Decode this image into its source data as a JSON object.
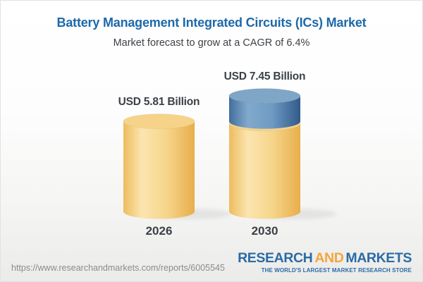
{
  "header": {
    "title": "Battery Management Integrated Circuits (ICs) Market",
    "subtitle": "Market forecast to grow at a CAGR of 6.4%"
  },
  "footer": {
    "url": "https://www.researchandmarkets.com/reports/6005545",
    "logo": {
      "part1": "RESEARCH",
      "part2": "AND",
      "part3": "MARKETS",
      "tagline": "THE WORLD'S LARGEST MARKET RESEARCH STORE"
    }
  },
  "colors": {
    "title_blue": "#1C69A9",
    "text_dark": "#3C4146",
    "url_gray": "#8C8C8C",
    "logo_blue": "#2B6BA4",
    "logo_orange": "#F1A73C",
    "border_gray": "#E2E2E2",
    "gold_dark_left": "#EDBC5F",
    "gold_light": "#FBE5AF",
    "gold_mid": "#F6D68C",
    "gold_dark_right": "#E8AE4B",
    "gold_top": "#F6D389",
    "blue_dark_left": "#416E9C",
    "blue_light": "#82A9CC",
    "blue_mid": "#6F9BC3",
    "blue_dark_right": "#32598B",
    "blue_top": "#7FA6C7",
    "shadow": "#9B9B9B"
  },
  "chart_data": {
    "type": "bar",
    "variant": "3d-cylinder",
    "title": "Battery Management Integrated Circuits (ICs) Market",
    "subtitle": "Market forecast to grow at a CAGR of 6.4%",
    "unit": "USD Billion",
    "cagr_percent": 6.4,
    "categories": [
      "2026",
      "2030"
    ],
    "values": [
      5.81,
      7.45
    ],
    "value_labels": [
      "USD 5.81 Billion",
      "USD 7.45 Billion"
    ],
    "highlight": {
      "bar": "2030",
      "base_value": 5.81,
      "growth_value": 1.64,
      "growth_color": "blue",
      "base_color": "gold"
    },
    "axes": "none",
    "grid": false,
    "legend": "none"
  }
}
